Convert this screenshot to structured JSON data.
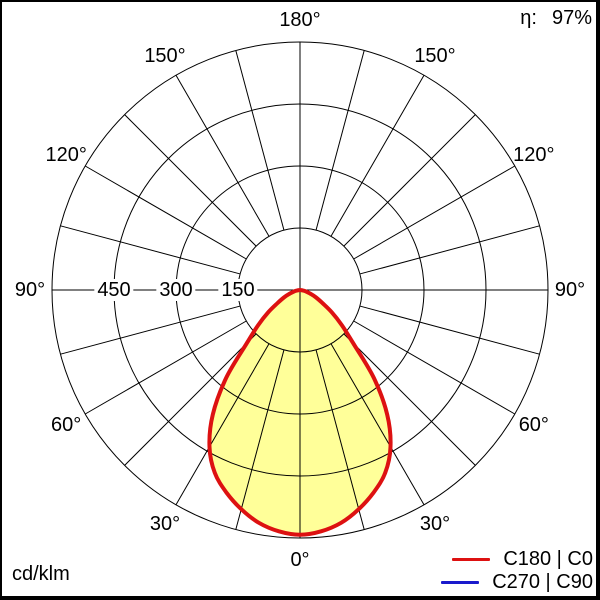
{
  "header": {
    "efficiency_label": "η:",
    "efficiency_value": "97%"
  },
  "footer": {
    "unit_label": "cd/klm"
  },
  "legend": {
    "items": [
      {
        "label": "C180 | C0",
        "color": "#dd1111"
      },
      {
        "label": "C270 | C90",
        "color": "#1a1acc"
      }
    ]
  },
  "chart_data": {
    "type": "polar",
    "subtype": "photometric-intensity-distribution",
    "title": "",
    "unit": "cd/klm",
    "efficiency_percent": 97,
    "radial_max": 600,
    "radial_ticks": [
      {
        "value": 150,
        "label": "150"
      },
      {
        "value": 300,
        "label": "300"
      },
      {
        "value": 450,
        "label": "450"
      }
    ],
    "grid_angle_step_deg": 15,
    "angle_labels": [
      {
        "deg": 0,
        "label": "0°"
      },
      {
        "deg": 30,
        "label": "30°"
      },
      {
        "deg": 60,
        "label": "60°"
      },
      {
        "deg": 90,
        "label": "90°"
      },
      {
        "deg": 120,
        "label": "120°"
      },
      {
        "deg": 150,
        "label": "150°"
      },
      {
        "deg": 180,
        "label": "180°"
      }
    ],
    "series": [
      {
        "name": "C270 | C90",
        "color": "#1a1acc",
        "fill": "none",
        "symmetric": true,
        "gamma_deg": [
          0,
          5,
          10,
          15,
          20,
          25,
          30,
          35,
          40,
          45,
          50,
          55,
          60,
          65,
          70,
          75,
          80,
          85,
          90
        ],
        "values_cd_per_klm": [
          592,
          586,
          572,
          549,
          521,
          488,
          438,
          368,
          278,
          182,
          132,
          94,
          62,
          43,
          28,
          16,
          8,
          3,
          0
        ]
      },
      {
        "name": "C180 | C0",
        "color": "#dd1111",
        "fill": "#ffff99",
        "symmetric": true,
        "gamma_deg": [
          0,
          5,
          10,
          15,
          20,
          25,
          30,
          35,
          40,
          45,
          50,
          55,
          60,
          65,
          70,
          75,
          80,
          85,
          90
        ],
        "values_cd_per_klm": [
          592,
          586,
          572,
          549,
          521,
          488,
          438,
          368,
          278,
          182,
          132,
          94,
          62,
          43,
          28,
          16,
          8,
          3,
          0
        ]
      }
    ]
  }
}
